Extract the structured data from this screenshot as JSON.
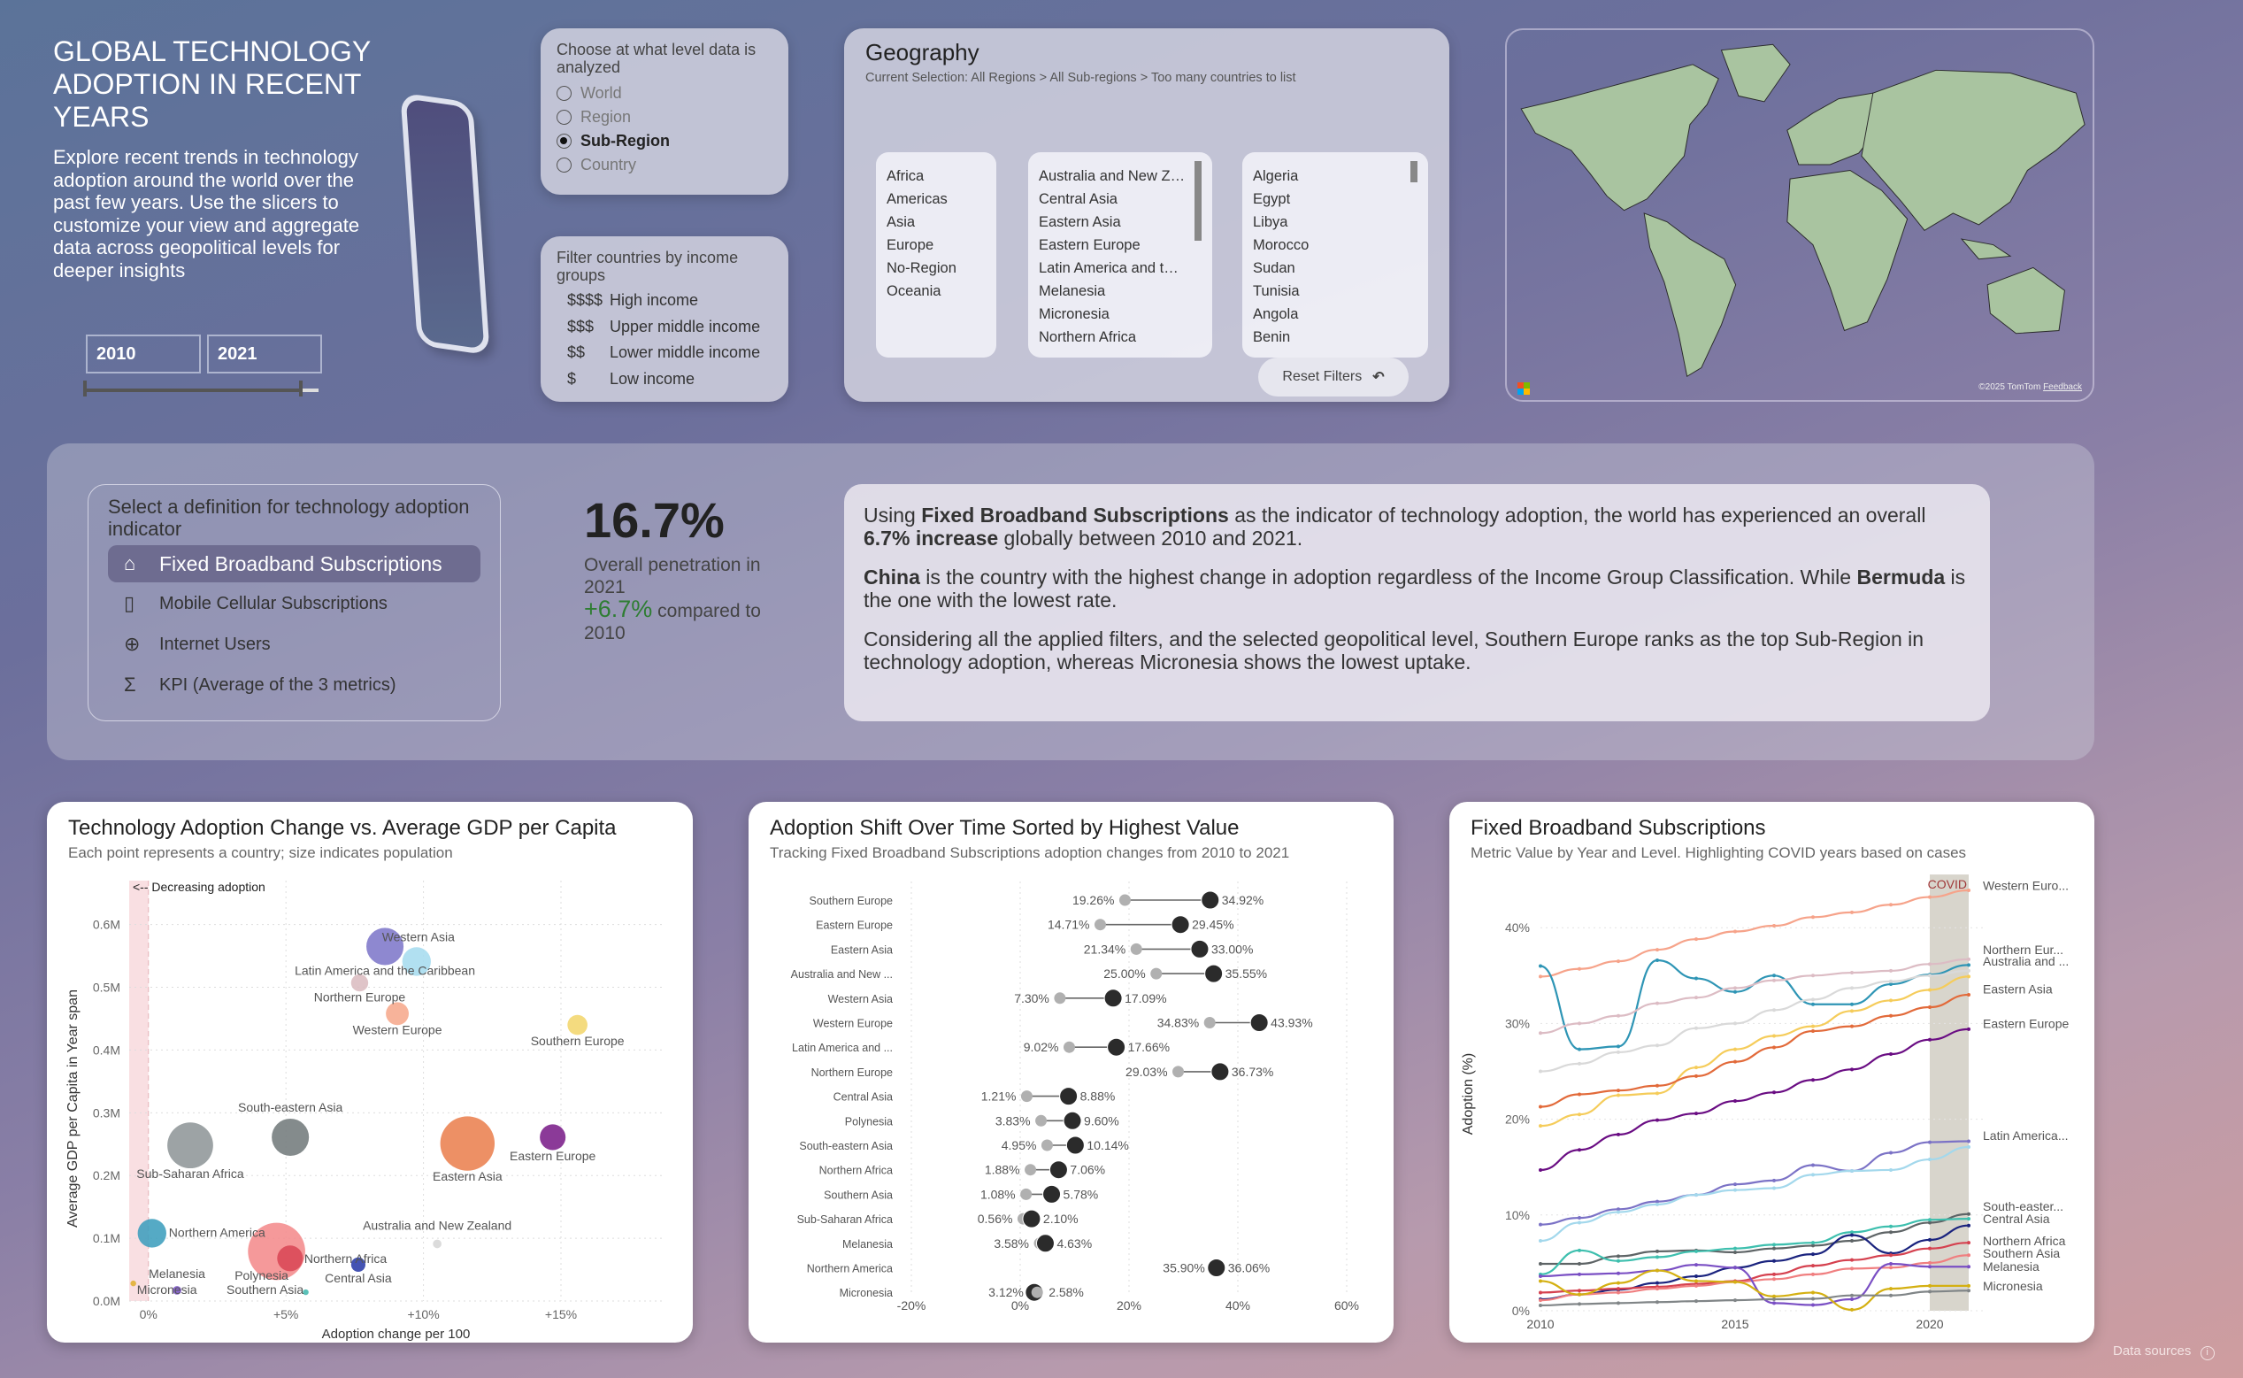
{
  "header": {
    "title": "GLOBAL TECHNOLOGY ADOPTION IN RECENT YEARS",
    "intro": "Explore recent trends in technology adoption around the world over the past few years. Use the slicers to customize your view and aggregate data across geopolitical levels for deeper insights",
    "year_start": "2010",
    "year_end": "2021"
  },
  "level_slicer": {
    "label": "Choose at what level data is analyzed",
    "options": [
      "World",
      "Region",
      "Sub-Region",
      "Country"
    ],
    "selected": "Sub-Region"
  },
  "income_slicer": {
    "label": "Filter countries by income groups",
    "options": [
      {
        "symbol": "$$$$",
        "label": "High income"
      },
      {
        "symbol": "$$$",
        "label": "Upper middle income"
      },
      {
        "symbol": "$$",
        "label": "Lower middle income"
      },
      {
        "symbol": "$",
        "label": "Low income"
      }
    ]
  },
  "geography": {
    "title": "Geography",
    "selection": "Current Selection: All Regions > All Sub-regions > Too many countries to list",
    "regions": [
      "Africa",
      "Americas",
      "Asia",
      "Europe",
      "No-Region",
      "Oceania"
    ],
    "subregions": [
      "Australia and New Zealand",
      "Central Asia",
      "Eastern Asia",
      "Eastern Europe",
      "Latin America and the Caribbean",
      "Melanesia",
      "Micronesia",
      "Northern Africa"
    ],
    "countries": [
      "Algeria",
      "Egypt",
      "Libya",
      "Morocco",
      "Sudan",
      "Tunisia",
      "Angola",
      "Benin"
    ],
    "reset_label": "Reset Filters",
    "reset_icon": "undo-arrow-icon"
  },
  "map": {
    "attribution": "©2025 TomTom",
    "feedback": "Feedback",
    "land_color": "#a9c4a0"
  },
  "indicator": {
    "label": "Select a definition for technology adoption indicator",
    "selected": 0,
    "options": [
      {
        "label": "Fixed Broadband Subscriptions",
        "icon": "home-icon"
      },
      {
        "label": "Mobile Cellular Subscriptions",
        "icon": "mobile-signal-icon"
      },
      {
        "label": "Internet Users",
        "icon": "globe-icon"
      },
      {
        "label": "KPI (Average of the 3 metrics)",
        "icon": "sigma-icon"
      }
    ]
  },
  "kpi": {
    "value": "16.7%",
    "line1": "Overall penetration in 2021",
    "change": "+6.7%",
    "line2": "compared to 2010",
    "change_color": "#2e7d32"
  },
  "narrative": [
    [
      {
        "t": "Using "
      },
      {
        "t": "Fixed Broadband Subscriptions",
        "b": true
      },
      {
        "t": " as the indicator of technology adoption, the world has experienced an overall "
      },
      {
        "t": "6.7% increase",
        "b": true
      },
      {
        "t": " globally between 2010 and 2021."
      }
    ],
    [
      {
        "t": "China",
        "b": true
      },
      {
        "t": " is the country with the highest change in adoption regardless of the Income Group Classification. While "
      },
      {
        "t": "Bermuda",
        "b": true
      },
      {
        "t": " is the one with the lowest rate."
      }
    ],
    [
      {
        "t": "Considering all the applied filters, and the selected geopolitical level, Southern Europe ranks as the top Sub-Region in technology adoption, whereas Micronesia shows the lowest uptake."
      }
    ]
  ],
  "footer": {
    "data_sources": "Data sources"
  },
  "chart_data": [
    {
      "type": "scatter",
      "title": "Technology Adoption Change vs. Average GDP per Capita",
      "subtitle": "Each point represents a country; size indicates population",
      "xlabel": "Adoption change per 100",
      "ylabel": "Average GDP per Capita in Year span",
      "annotation": "<-- Decreasing adoption",
      "xlim": [
        -0.7,
        18.7
      ],
      "ylim": [
        0,
        0.67
      ],
      "xticks": [
        0,
        5,
        10,
        15
      ],
      "xtick_labels": [
        "0%",
        "+5%",
        "+10%",
        "+15%"
      ],
      "yticks": [
        0,
        0.1,
        0.2,
        0.3,
        0.4,
        0.5,
        0.6
      ],
      "ytick_labels": [
        "0.0M",
        "0.1M",
        "0.2M",
        "0.3M",
        "0.4M",
        "0.5M",
        "0.6M"
      ],
      "grid": true,
      "points": [
        {
          "name": "Latin America and the Caribbean",
          "x": 8.6,
          "y": 0.565,
          "size": 13,
          "color": "#7e78c9"
        },
        {
          "name": "Western Asia",
          "x": 9.75,
          "y": 0.541,
          "size": 10,
          "color": "#a6dcef"
        },
        {
          "name": "Northern Europe",
          "x": 7.68,
          "y": 0.507,
          "size": 6,
          "color": "#dbbcc0"
        },
        {
          "name": "Western Europe",
          "x": 9.05,
          "y": 0.458,
          "size": 8,
          "color": "#f6a98c"
        },
        {
          "name": "Southern Europe",
          "x": 15.6,
          "y": 0.44,
          "size": 7,
          "color": "#f2d66d"
        },
        {
          "name": "Sub-Saharan Africa",
          "x": 1.52,
          "y": 0.248,
          "size": 16,
          "color": "#8f9698"
        },
        {
          "name": "South-eastern Asia",
          "x": 5.16,
          "y": 0.261,
          "size": 13,
          "color": "#737b7c"
        },
        {
          "name": "Eastern Asia",
          "x": 11.6,
          "y": 0.251,
          "size": 19,
          "color": "#ea8150"
        },
        {
          "name": "Eastern Europe",
          "x": 14.7,
          "y": 0.261,
          "size": 9,
          "color": "#7b1f8a"
        },
        {
          "name": "Northern America",
          "x": 0.13,
          "y": 0.108,
          "size": 10,
          "color": "#3d9ebd"
        },
        {
          "name": "Southern Asia",
          "x": 4.66,
          "y": 0.079,
          "size": 20,
          "color": "#f48b8c"
        },
        {
          "name": "Northern Africa",
          "x": 5.15,
          "y": 0.068,
          "size": 9,
          "color": "#d94755"
        },
        {
          "name": "Polynesia",
          "x": 5.72,
          "y": 0.014,
          "size": 2,
          "color": "#44b8ae"
        },
        {
          "name": "Central Asia",
          "x": 7.63,
          "y": 0.058,
          "size": 5,
          "color": "#2a3ba8"
        },
        {
          "name": "Melanesia",
          "x": 1.04,
          "y": 0.017,
          "size": 3,
          "color": "#7a52c8"
        },
        {
          "name": "Micronesia",
          "x": -0.55,
          "y": 0.028,
          "size": 2,
          "color": "#e0b030"
        },
        {
          "name": "Australia and New Zealand",
          "x": 10.5,
          "y": 0.091,
          "size": 3,
          "color": "#d6d6d6"
        }
      ]
    },
    {
      "type": "dumbbell",
      "title": "Adoption Shift Over Time Sorted by Highest Value",
      "subtitle": "Tracking Fixed Broadband Subscriptions adoption changes from 2010 to 2021",
      "xlim": [
        -20,
        60
      ],
      "xticks": [
        -20,
        0,
        20,
        40,
        60
      ],
      "xtick_labels": [
        "-20%",
        "0%",
        "20%",
        "40%",
        "60%"
      ],
      "start_color": "#b0b0b0",
      "end_color": "#2b2b2b",
      "rows": [
        {
          "label": "Southern Europe",
          "v2010": 19.26,
          "v2021": 34.92
        },
        {
          "label": "Eastern Europe",
          "v2010": 14.71,
          "v2021": 29.45
        },
        {
          "label": "Eastern Asia",
          "v2010": 21.34,
          "v2021": 33.0
        },
        {
          "label": "Australia and New ...",
          "v2010": 25.0,
          "v2021": 35.55
        },
        {
          "label": "Western Asia",
          "v2010": 7.3,
          "v2021": 17.09
        },
        {
          "label": "Western Europe",
          "v2010": 34.83,
          "v2021": 43.93
        },
        {
          "label": "Latin America and ...",
          "v2010": 9.02,
          "v2021": 17.66
        },
        {
          "label": "Northern Europe",
          "v2010": 29.03,
          "v2021": 36.73
        },
        {
          "label": "Central Asia",
          "v2010": 1.21,
          "v2021": 8.88
        },
        {
          "label": "Polynesia",
          "v2010": 3.83,
          "v2021": 9.6
        },
        {
          "label": "South-eastern Asia",
          "v2010": 4.95,
          "v2021": 10.14
        },
        {
          "label": "Northern Africa",
          "v2010": 1.88,
          "v2021": 7.06
        },
        {
          "label": "Southern Asia",
          "v2010": 1.08,
          "v2021": 5.78
        },
        {
          "label": "Sub-Saharan Africa",
          "v2010": 0.56,
          "v2021": 2.1
        },
        {
          "label": "Melanesia",
          "v2010": 3.58,
          "v2021": 4.63
        },
        {
          "label": "Northern America",
          "v2010": 35.9,
          "v2021": 36.06
        },
        {
          "label": "Micronesia",
          "v2010": 3.12,
          "v2021": 2.58
        }
      ]
    },
    {
      "type": "line",
      "title": "Fixed Broadband Subscriptions",
      "subtitle": "Metric Value by Year and Level. Highlighting COVID years based on cases",
      "ylabel": "Adoption (%)",
      "x": [
        2010,
        2011,
        2012,
        2013,
        2014,
        2015,
        2016,
        2017,
        2018,
        2019,
        2020,
        2021
      ],
      "xticks": [
        2010,
        2015,
        2020
      ],
      "yticks": [
        0,
        10,
        20,
        30,
        40
      ],
      "ytick_labels": [
        "0%",
        "10%",
        "20%",
        "30%",
        "40%"
      ],
      "ylim": [
        0,
        45
      ],
      "highlight": {
        "label": "COVID",
        "from": 2020,
        "to": 2021,
        "color": "#d8d5cc"
      },
      "series": [
        {
          "name": "Western Euro...",
          "color": "#f6a38a",
          "values": [
            34.9,
            35.7,
            36.5,
            37.7,
            38.8,
            39.6,
            40.2,
            41.1,
            41.6,
            42.4,
            43.2,
            43.9
          ]
        },
        {
          "name": "",
          "color": "#2e95b5",
          "values": [
            36.0,
            27.3,
            27.6,
            36.6,
            34.7,
            33.3,
            35.0,
            32.0,
            32.0,
            34.1,
            35.1,
            36.1
          ]
        },
        {
          "name": "Northern Eur...",
          "color": "#dcbcc4",
          "values": [
            29.0,
            30.0,
            30.8,
            32.1,
            32.7,
            33.7,
            34.5,
            35.0,
            35.3,
            35.5,
            36.2,
            36.7
          ]
        },
        {
          "name": "Australia and ...",
          "color": "#d9d9d9",
          "values": [
            25.0,
            25.8,
            27.0,
            27.7,
            29.5,
            30.0,
            31.4,
            32.5,
            33.7,
            34.4,
            35.0,
            35.5
          ]
        },
        {
          "name": "",
          "color": "#f5cc5a",
          "values": [
            19.3,
            20.5,
            22.5,
            22.7,
            25.4,
            27.3,
            28.7,
            29.7,
            31.3,
            32.4,
            33.5,
            34.9
          ]
        },
        {
          "name": "Eastern Asia",
          "color": "#e26a3a",
          "values": [
            21.3,
            22.6,
            23.0,
            23.5,
            24.5,
            26.0,
            27.5,
            29.2,
            29.7,
            30.8,
            31.7,
            33.0
          ]
        },
        {
          "name": "Eastern Europe",
          "color": "#6a0d83",
          "values": [
            14.7,
            16.8,
            18.4,
            19.9,
            20.6,
            21.9,
            22.8,
            24.1,
            25.2,
            26.8,
            28.3,
            29.4
          ]
        },
        {
          "name": "Latin America...",
          "color": "#7b72c6",
          "values": [
            9.0,
            9.7,
            10.6,
            11.4,
            12.1,
            13.2,
            13.6,
            15.2,
            14.6,
            16.5,
            17.6,
            17.7
          ]
        },
        {
          "name": "",
          "color": "#a3d8ec",
          "values": [
            7.3,
            9.2,
            10.3,
            11.1,
            12.1,
            12.6,
            12.8,
            14.2,
            14.6,
            14.7,
            15.8,
            17.1
          ]
        },
        {
          "name": "South-easter...",
          "color": "#5e6466",
          "values": [
            4.9,
            4.9,
            5.7,
            6.2,
            6.3,
            6.1,
            6.5,
            6.8,
            7.3,
            8.2,
            9.2,
            10.1
          ]
        },
        {
          "name": "",
          "color": "#3dbfae",
          "values": [
            3.8,
            6.3,
            5.2,
            5.6,
            6.2,
            6.5,
            6.9,
            7.1,
            8.2,
            8.8,
            9.5,
            9.6
          ]
        },
        {
          "name": "Central Asia",
          "color": "#1a237e",
          "values": [
            1.2,
            1.7,
            2.2,
            2.9,
            3.6,
            4.5,
            5.2,
            5.9,
            7.9,
            6.0,
            7.4,
            8.9
          ]
        },
        {
          "name": "Northern Africa",
          "color": "#d5414f",
          "values": [
            1.9,
            2.1,
            2.3,
            2.5,
            2.8,
            3.1,
            3.8,
            4.7,
            5.3,
            5.8,
            6.5,
            7.1
          ]
        },
        {
          "name": "Southern Asia",
          "color": "#f07f80",
          "values": [
            1.1,
            1.7,
            1.9,
            2.3,
            2.6,
            3.0,
            3.3,
            3.8,
            4.4,
            4.5,
            5.0,
            5.8
          ]
        },
        {
          "name": "Melanesia",
          "color": "#7a4fc4",
          "values": [
            3.6,
            3.8,
            3.9,
            4.2,
            4.8,
            4.5,
            0.8,
            0.6,
            1.2,
            4.9,
            4.6,
            4.6
          ]
        },
        {
          "name": "Micronesia",
          "color": "#d4b012",
          "values": [
            3.1,
            1.7,
            2.9,
            4.2,
            3.1,
            3.0,
            1.5,
            1.9,
            0.1,
            2.3,
            2.6,
            2.6
          ]
        },
        {
          "name": "",
          "color": "#808587",
          "values": [
            0.56,
            0.7,
            0.8,
            0.9,
            1.0,
            1.1,
            1.2,
            1.25,
            1.6,
            1.6,
            2.0,
            2.1
          ]
        }
      ]
    }
  ]
}
